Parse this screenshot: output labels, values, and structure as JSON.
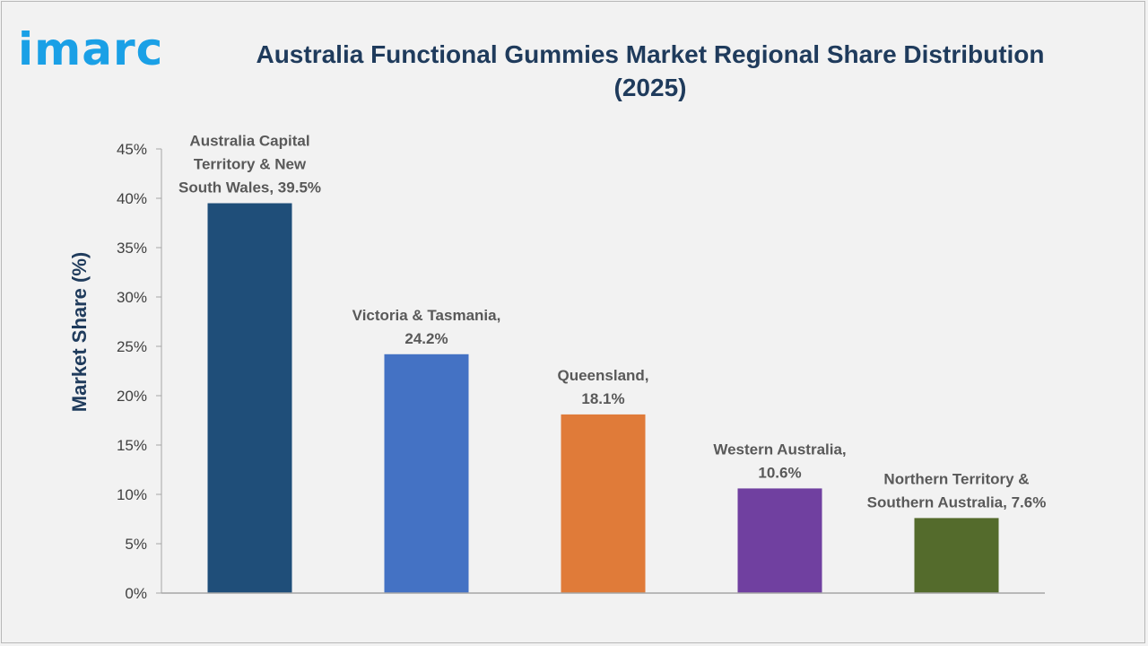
{
  "brand": {
    "logo_text": "imarc"
  },
  "colors": {
    "background": "#f2f2f2",
    "title": "#1f3b5c",
    "logo": "#1aa0e6",
    "axis": "#a6a6a6",
    "label": "#595959"
  },
  "chart_data": {
    "type": "bar",
    "title": "Australia Functional Gummies Market Regional Share Distribution (2025)",
    "xlabel": "",
    "ylabel": "Market Share (%)",
    "ylim": [
      0,
      45
    ],
    "yticks": [
      "0%",
      "5%",
      "10%",
      "15%",
      "20%",
      "25%",
      "30%",
      "35%",
      "40%",
      "45%"
    ],
    "grid": false,
    "categories": [
      "Australia Capital Territory & New South Wales",
      "Victoria & Tasmania",
      "Queensland",
      "Western Australia",
      "Northern Territory & Southern Australia"
    ],
    "values": [
      39.5,
      24.2,
      18.1,
      10.6,
      7.6
    ],
    "bar_colors": [
      "#1f4e79",
      "#4472c4",
      "#e07b39",
      "#7040a0",
      "#546b2c"
    ],
    "data_labels": [
      [
        "Australia Capital",
        "Territory & New",
        "South Wales, 39.5%"
      ],
      [
        "Victoria & Tasmania,",
        "24.2%"
      ],
      [
        "Queensland,",
        "18.1%"
      ],
      [
        "Western Australia,",
        "10.6%"
      ],
      [
        "Northern Territory &",
        "Southern Australia, 7.6%"
      ]
    ]
  }
}
